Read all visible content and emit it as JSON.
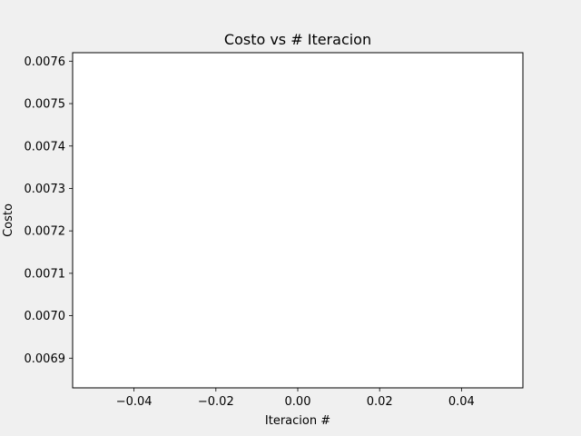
{
  "chart_data": {
    "type": "line",
    "title": "Costo vs # Iteracion",
    "xlabel": "Iteracion #",
    "ylabel": "Costo",
    "x": [],
    "series": [
      {
        "values": []
      }
    ],
    "xlim": [
      -0.055,
      0.055
    ],
    "ylim": [
      0.00683,
      0.00762
    ],
    "xticks": [
      -0.04,
      -0.02,
      0.0,
      0.02,
      0.04
    ],
    "xtick_labels": [
      "−0.04",
      "−0.02",
      "0.00",
      "0.02",
      "0.04"
    ],
    "yticks": [
      0.0069,
      0.007,
      0.0071,
      0.0072,
      0.0073,
      0.0074,
      0.0075,
      0.0076
    ],
    "ytick_labels": [
      "0.0069",
      "0.0070",
      "0.0071",
      "0.0072",
      "0.0073",
      "0.0074",
      "0.0075",
      "0.0076"
    ],
    "grid": false,
    "legend": "none",
    "colors": {
      "figure_bg": "#f0f0f0",
      "axes_bg": "#ffffff",
      "spine": "#000000",
      "line": "#1f77b4"
    }
  }
}
